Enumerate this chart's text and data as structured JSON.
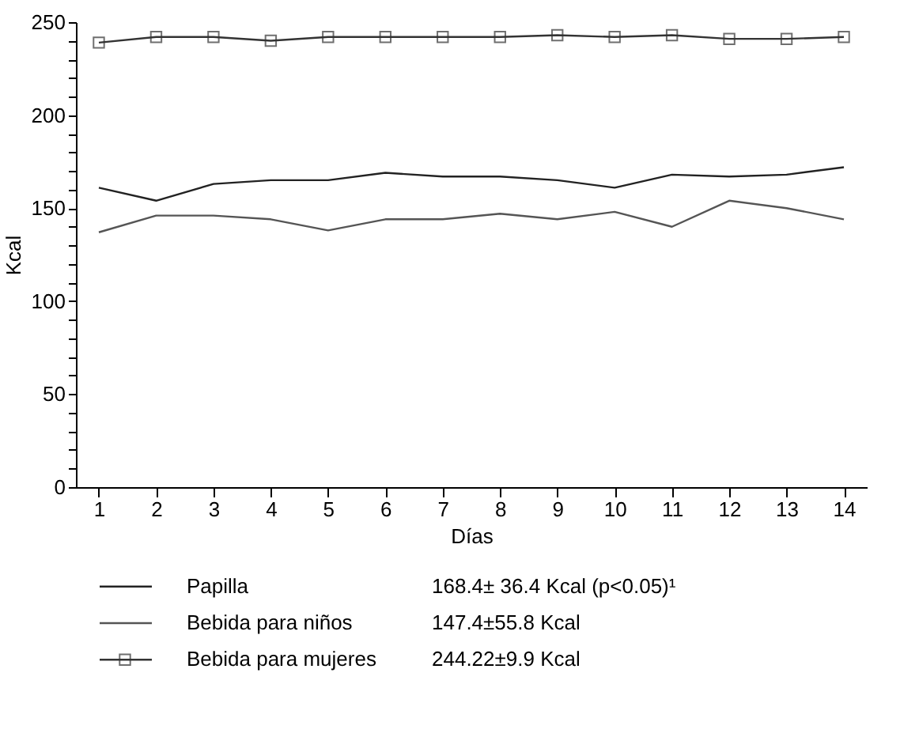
{
  "chart_data": {
    "type": "line",
    "xlabel": "Días",
    "ylabel": "Kcal",
    "x": [
      1,
      2,
      3,
      4,
      5,
      6,
      7,
      8,
      9,
      10,
      11,
      12,
      13,
      14
    ],
    "xlim": [
      0.6,
      14.4
    ],
    "xticks": [
      1,
      2,
      3,
      4,
      5,
      6,
      7,
      8,
      9,
      10,
      11,
      12,
      13,
      14
    ],
    "ylim": [
      0,
      250
    ],
    "yticks": [
      0,
      {
        "value": 10,
        "label": null
      },
      {
        "value": 20,
        "label": null
      },
      {
        "value": 30,
        "label": null
      },
      {
        "value": 40,
        "label": null
      },
      50,
      {
        "value": 60,
        "label": null
      },
      {
        "value": 70,
        "label": null
      },
      {
        "value": 80,
        "label": null
      },
      {
        "value": 90,
        "label": null
      },
      100,
      {
        "value": 110,
        "label": null
      },
      {
        "value": 120,
        "label": null
      },
      {
        "value": 130,
        "label": null
      },
      {
        "value": 140,
        "label": null
      },
      150,
      {
        "value": 160,
        "label": null
      },
      {
        "value": 170,
        "label": null
      },
      {
        "value": 180,
        "label": null
      },
      {
        "value": 190,
        "label": null
      },
      200,
      {
        "value": 210,
        "label": null
      },
      {
        "value": 220,
        "label": null
      },
      {
        "value": 230,
        "label": null
      },
      {
        "value": 240,
        "label": null
      },
      250
    ],
    "grid": false,
    "legend": "bottom",
    "series": [
      {
        "name": "Papilla",
        "color": "#222222",
        "marker": "none",
        "values": [
          161,
          154,
          163,
          165,
          165,
          169,
          167,
          167,
          165,
          161,
          168,
          167,
          168,
          172
        ]
      },
      {
        "name": "Bebida para niños",
        "color": "#555555",
        "marker": "none",
        "values": [
          137,
          146,
          146,
          144,
          138,
          144,
          144,
          147,
          144,
          148,
          140,
          154,
          150,
          144
        ]
      },
      {
        "name": "Bebida para mujeres",
        "color": "#333333",
        "marker": "square",
        "values": [
          239,
          242,
          242,
          240,
          242,
          242,
          242,
          242,
          243,
          242,
          243,
          241,
          241,
          242
        ]
      }
    ],
    "annotations": [
      "168.4± 36.4 Kcal (p<0.05)¹",
      "147.4±55.8 Kcal",
      "244.22±9.9 Kcal"
    ]
  }
}
